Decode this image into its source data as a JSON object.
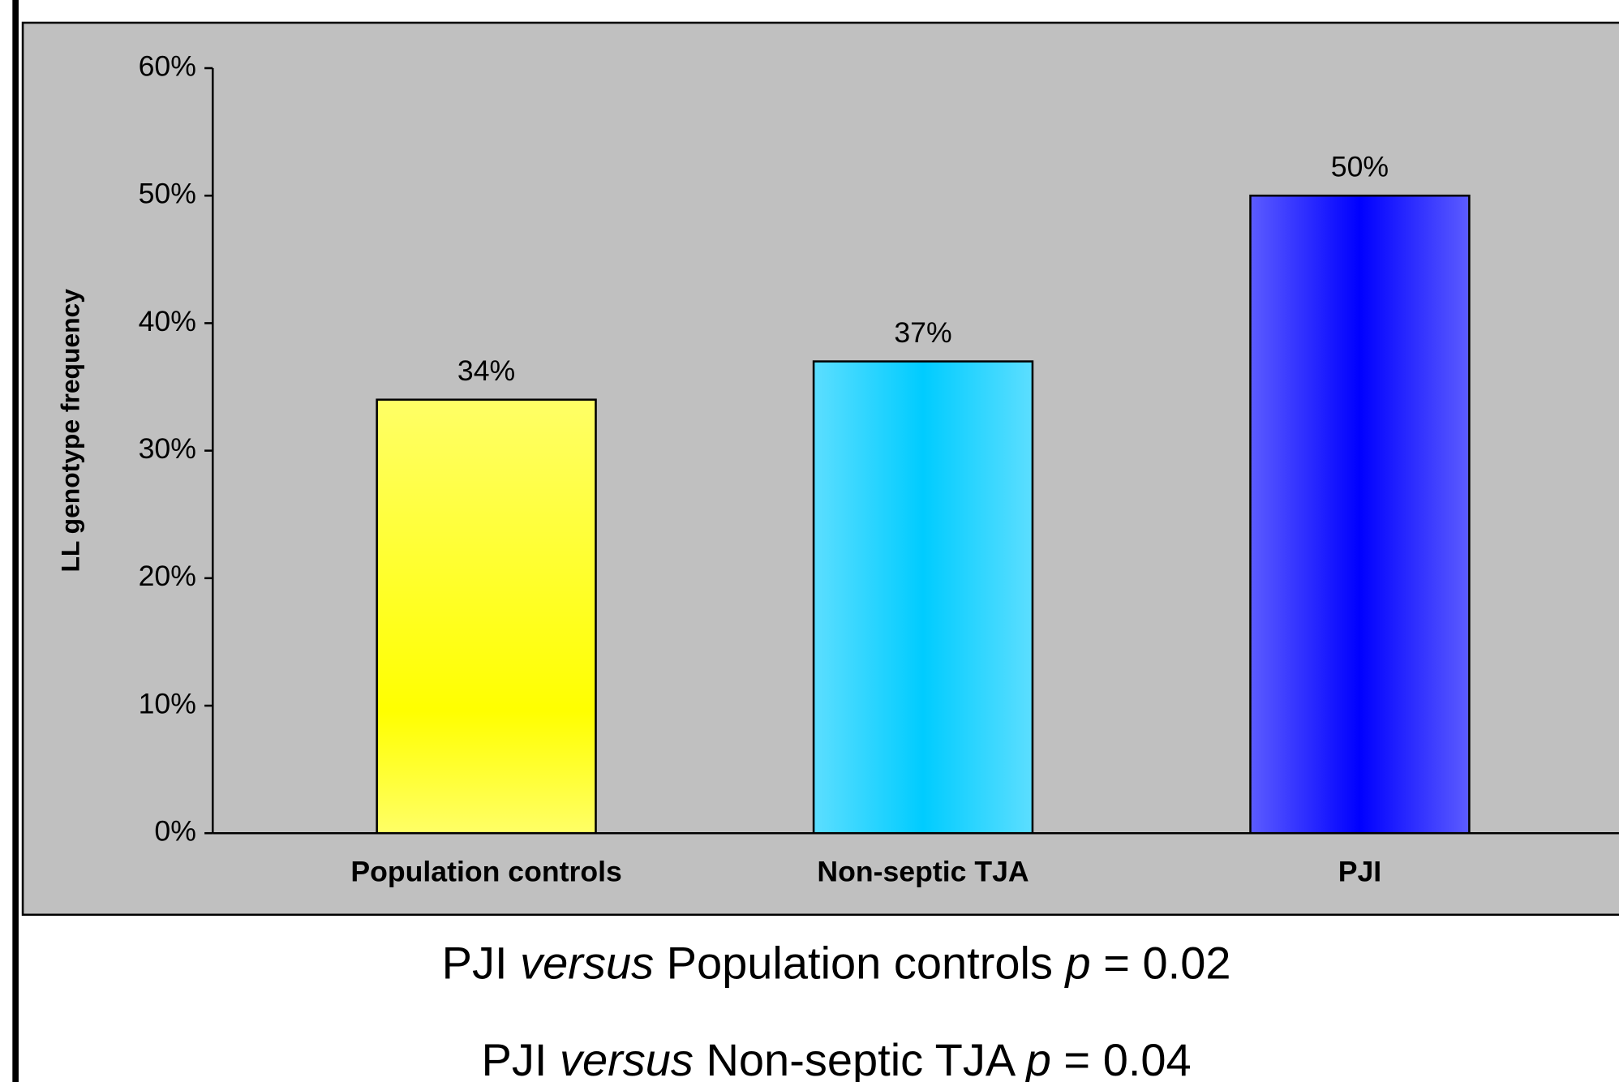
{
  "chart_data": {
    "type": "bar",
    "y_label": "LL genotype frequency",
    "categories": [
      "Population controls",
      "Non-septic TJA",
      "PJI"
    ],
    "values": [
      34,
      37,
      50
    ],
    "value_labels": [
      "34%",
      "37%",
      "50%"
    ],
    "colors": [
      "#ffff00",
      "#00ccff",
      "#0000ff"
    ],
    "ylim": [
      0,
      60
    ],
    "yticks": [
      {
        "value": 0,
        "label": "0%"
      },
      {
        "value": 10,
        "label": "10%"
      },
      {
        "value": 20,
        "label": "20%"
      },
      {
        "value": 30,
        "label": "30%"
      },
      {
        "value": 40,
        "label": "40%"
      },
      {
        "value": 50,
        "label": "50%"
      },
      {
        "value": 60,
        "label": "60%"
      }
    ],
    "annotations": [
      [
        "PJI ",
        "versus",
        " Population controls ",
        "p",
        " = 0.02"
      ],
      [
        "PJI ",
        "versus",
        " Non-septic TJA ",
        "p",
        " = 0.04"
      ]
    ]
  }
}
